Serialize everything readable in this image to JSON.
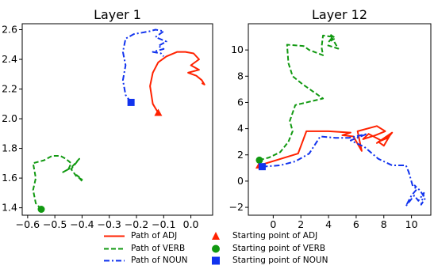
{
  "chart_data": [
    {
      "type": "line",
      "title": "Layer 1",
      "xlim": [
        -0.62,
        0.08
      ],
      "ylim": [
        1.35,
        2.64
      ],
      "xticks": [
        -0.6,
        -0.5,
        -0.4,
        -0.3,
        -0.2,
        -0.1,
        0.0
      ],
      "yticks": [
        1.4,
        1.6,
        1.8,
        2.0,
        2.2,
        2.4,
        2.6
      ],
      "xtick_labels": [
        "−0.6",
        "−0.5",
        "−0.4",
        "−0.3",
        "−0.2",
        "−0.1",
        "0.0"
      ],
      "ytick_labels": [
        "1.4",
        "1.6",
        "1.8",
        "2.0",
        "2.2",
        "2.4",
        "2.6"
      ],
      "grid": false,
      "series": [
        {
          "name": "Path of ADJ",
          "color": "#ff2200",
          "style": "solid",
          "start": [
            -0.12,
            2.04
          ],
          "points": [
            [
              -0.12,
              2.04
            ],
            [
              -0.14,
              2.1
            ],
            [
              -0.15,
              2.22
            ],
            [
              -0.14,
              2.31
            ],
            [
              -0.12,
              2.38
            ],
            [
              -0.09,
              2.42
            ],
            [
              -0.05,
              2.45
            ],
            [
              -0.02,
              2.45
            ],
            [
              0.01,
              2.44
            ],
            [
              0.03,
              2.4
            ],
            [
              0.0,
              2.36
            ],
            [
              0.03,
              2.33
            ],
            [
              -0.01,
              2.31
            ],
            [
              0.02,
              2.29
            ],
            [
              0.04,
              2.26
            ],
            [
              0.05,
              2.23
            ],
            [
              0.04,
              2.24
            ]
          ]
        },
        {
          "name": "Path of VERB",
          "color": "#119911",
          "style": "dashed",
          "start": [
            -0.55,
            1.39
          ],
          "points": [
            [
              -0.55,
              1.39
            ],
            [
              -0.57,
              1.43
            ],
            [
              -0.58,
              1.52
            ],
            [
              -0.57,
              1.6
            ],
            [
              -0.58,
              1.7
            ],
            [
              -0.54,
              1.72
            ],
            [
              -0.51,
              1.75
            ],
            [
              -0.48,
              1.75
            ],
            [
              -0.46,
              1.73
            ],
            [
              -0.44,
              1.7
            ],
            [
              -0.45,
              1.66
            ],
            [
              -0.47,
              1.64
            ],
            [
              -0.44,
              1.67
            ],
            [
              -0.42,
              1.71
            ],
            [
              -0.41,
              1.73
            ],
            [
              -0.44,
              1.66
            ],
            [
              -0.42,
              1.61
            ],
            [
              -0.4,
              1.59
            ],
            [
              -0.42,
              1.62
            ],
            [
              -0.4,
              1.58
            ]
          ]
        },
        {
          "name": "Path of NOUN",
          "color": "#1133ee",
          "style": "dashdot",
          "start": [
            -0.22,
            2.11
          ],
          "points": [
            [
              -0.22,
              2.11
            ],
            [
              -0.24,
              2.16
            ],
            [
              -0.25,
              2.26
            ],
            [
              -0.24,
              2.36
            ],
            [
              -0.25,
              2.45
            ],
            [
              -0.24,
              2.54
            ],
            [
              -0.21,
              2.57
            ],
            [
              -0.18,
              2.58
            ],
            [
              -0.15,
              2.59
            ],
            [
              -0.13,
              2.6
            ],
            [
              -0.1,
              2.59
            ],
            [
              -0.13,
              2.55
            ],
            [
              -0.09,
              2.52
            ],
            [
              -0.12,
              2.49
            ],
            [
              -0.1,
              2.47
            ],
            [
              -0.14,
              2.45
            ],
            [
              -0.11,
              2.44
            ],
            [
              -0.1,
              2.42
            ]
          ]
        }
      ]
    },
    {
      "type": "line",
      "title": "Layer 12",
      "xlim": [
        -1.8,
        11.4
      ],
      "ylim": [
        -2.6,
        12.0
      ],
      "xticks": [
        0,
        2,
        4,
        6,
        8,
        10
      ],
      "yticks": [
        -2,
        0,
        2,
        4,
        6,
        8,
        10
      ],
      "xtick_labels": [
        "0",
        "2",
        "4",
        "6",
        "8",
        "10"
      ],
      "ytick_labels": [
        "−2",
        "0",
        "2",
        "4",
        "6",
        "8",
        "10"
      ],
      "grid": false,
      "series": [
        {
          "name": "Path of ADJ",
          "color": "#ff2200",
          "style": "solid",
          "start": [
            -1.0,
            1.2
          ],
          "points": [
            [
              -1.0,
              1.2
            ],
            [
              1.8,
              2.1
            ],
            [
              2.4,
              3.8
            ],
            [
              4.0,
              3.8
            ],
            [
              5.6,
              3.7
            ],
            [
              5.0,
              3.5
            ],
            [
              5.8,
              3.4
            ],
            [
              6.4,
              2.3
            ],
            [
              6.1,
              3.8
            ],
            [
              7.5,
              4.2
            ],
            [
              8.1,
              3.8
            ],
            [
              7.4,
              3.5
            ],
            [
              6.5,
              3.2
            ],
            [
              6.9,
              3.6
            ],
            [
              7.8,
              3.1
            ],
            [
              8.5,
              3.6
            ],
            [
              8.0,
              2.7
            ],
            [
              7.6,
              3.0
            ],
            [
              8.3,
              3.3
            ],
            [
              8.6,
              3.7
            ],
            [
              7.5,
              2.9
            ],
            [
              8.4,
              3.5
            ]
          ]
        },
        {
          "name": "Path of VERB",
          "color": "#119911",
          "style": "dashed",
          "start": [
            -1.0,
            1.6
          ],
          "points": [
            [
              -1.0,
              1.6
            ],
            [
              -0.3,
              1.8
            ],
            [
              0.5,
              2.2
            ],
            [
              1.1,
              3.0
            ],
            [
              1.4,
              3.8
            ],
            [
              1.2,
              4.6
            ],
            [
              1.6,
              5.8
            ],
            [
              3.6,
              6.3
            ],
            [
              2.1,
              7.4
            ],
            [
              1.4,
              8.0
            ],
            [
              1.1,
              9.0
            ],
            [
              1.0,
              10.4
            ],
            [
              2.2,
              10.3
            ],
            [
              2.6,
              10.0
            ],
            [
              3.6,
              9.6
            ],
            [
              3.5,
              10.2
            ],
            [
              3.6,
              11.1
            ],
            [
              4.3,
              11.0
            ],
            [
              4.0,
              10.6
            ],
            [
              4.5,
              10.9
            ],
            [
              4.1,
              11.2
            ],
            [
              4.7,
              10.1
            ],
            [
              3.8,
              10.4
            ]
          ]
        },
        {
          "name": "Path of NOUN",
          "color": "#1133ee",
          "style": "dashdot",
          "start": [
            -0.8,
            1.1
          ],
          "points": [
            [
              -0.8,
              1.1
            ],
            [
              0.5,
              1.2
            ],
            [
              1.6,
              1.5
            ],
            [
              2.6,
              2.1
            ],
            [
              3.4,
              3.4
            ],
            [
              4.5,
              3.3
            ],
            [
              5.5,
              3.3
            ],
            [
              6.8,
              3.6
            ],
            [
              5.6,
              3.1
            ],
            [
              6.6,
              2.6
            ],
            [
              7.6,
              1.7
            ],
            [
              8.6,
              1.2
            ],
            [
              9.6,
              1.2
            ],
            [
              9.8,
              0.7
            ],
            [
              10.1,
              -0.4
            ],
            [
              10.4,
              -0.6
            ],
            [
              10.0,
              -1.1
            ],
            [
              9.6,
              -1.9
            ],
            [
              10.2,
              -1.1
            ],
            [
              10.5,
              -1.5
            ],
            [
              10.9,
              -0.9
            ],
            [
              10.7,
              -1.8
            ],
            [
              11.0,
              -1.3
            ],
            [
              10.6,
              -0.7
            ],
            [
              10.2,
              -0.3
            ]
          ]
        }
      ]
    }
  ],
  "legend": [
    {
      "label": "Path of ADJ",
      "kind": "line",
      "color": "#ff2200",
      "style": "solid"
    },
    {
      "label": "Starting point of ADJ",
      "kind": "marker",
      "color": "#ff2200",
      "marker": "triangle"
    },
    {
      "label": "Path of VERB",
      "kind": "line",
      "color": "#119911",
      "style": "dashed"
    },
    {
      "label": "Starting point of VERB",
      "kind": "marker",
      "color": "#119911",
      "marker": "circle"
    },
    {
      "label": "Path of NOUN",
      "kind": "line",
      "color": "#1133ee",
      "style": "dashdot"
    },
    {
      "label": "Starting point of NOUN",
      "kind": "marker",
      "color": "#1133ee",
      "marker": "square"
    }
  ]
}
